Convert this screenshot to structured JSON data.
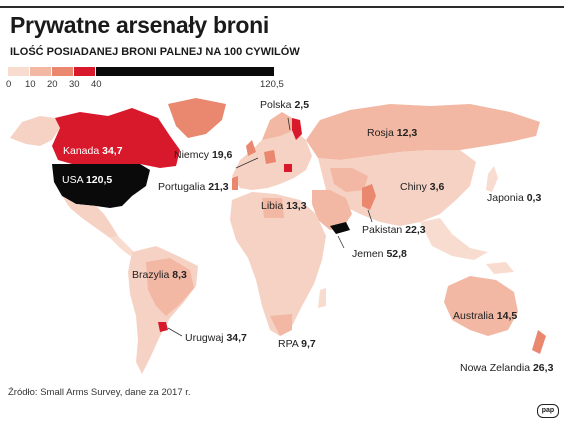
{
  "title": "Prywatne arsenały broni",
  "subtitle": "ILOŚĆ POSIADANEJ BRONI PALNEJ NA 100 CYWILÓW",
  "legend": {
    "ticks": [
      "0",
      "10",
      "20",
      "30",
      "40",
      "120,5"
    ],
    "bins": [
      {
        "from": 0,
        "to": 10,
        "color": "#f9dcd0"
      },
      {
        "from": 10,
        "to": 20,
        "color": "#f2b8a3"
      },
      {
        "from": 20,
        "to": 30,
        "color": "#e9876f"
      },
      {
        "from": 30,
        "to": 40,
        "color": "#d8182b"
      },
      {
        "from": 40,
        "to": 120.5,
        "color": "#0a0a0a"
      }
    ]
  },
  "colors": {
    "ocean": "#ffffff",
    "land_default": "#f6d2c4",
    "bin_0_10": "#f9dcd0",
    "bin_10_20": "#f2b8a3",
    "bin_20_30": "#e9876f",
    "bin_30_40": "#d8182b",
    "bin_40_plus": "#0a0a0a"
  },
  "countries": [
    {
      "name": "USA",
      "value": "120,5"
    },
    {
      "name": "Kanada",
      "value": "34,7"
    },
    {
      "name": "Polska",
      "value": "2,5"
    },
    {
      "name": "Rosja",
      "value": "12,3"
    },
    {
      "name": "Niemcy",
      "value": "19,6"
    },
    {
      "name": "Portugalia",
      "value": "21,3"
    },
    {
      "name": "Chiny",
      "value": "3,6"
    },
    {
      "name": "Japonia",
      "value": "0,3"
    },
    {
      "name": "Libia",
      "value": "13,3"
    },
    {
      "name": "Pakistan",
      "value": "22,3"
    },
    {
      "name": "Jemen",
      "value": "52,8"
    },
    {
      "name": "Brazylia",
      "value": "8,3"
    },
    {
      "name": "Urugwaj",
      "value": "34,7"
    },
    {
      "name": "RPA",
      "value": "9,7"
    },
    {
      "name": "Australia",
      "value": "14,5"
    },
    {
      "name": "Nowa Zelandia",
      "value": "26,3"
    }
  ],
  "source": "Źródło: Small Arms Survey, dane za 2017 r.",
  "logo": "pap"
}
